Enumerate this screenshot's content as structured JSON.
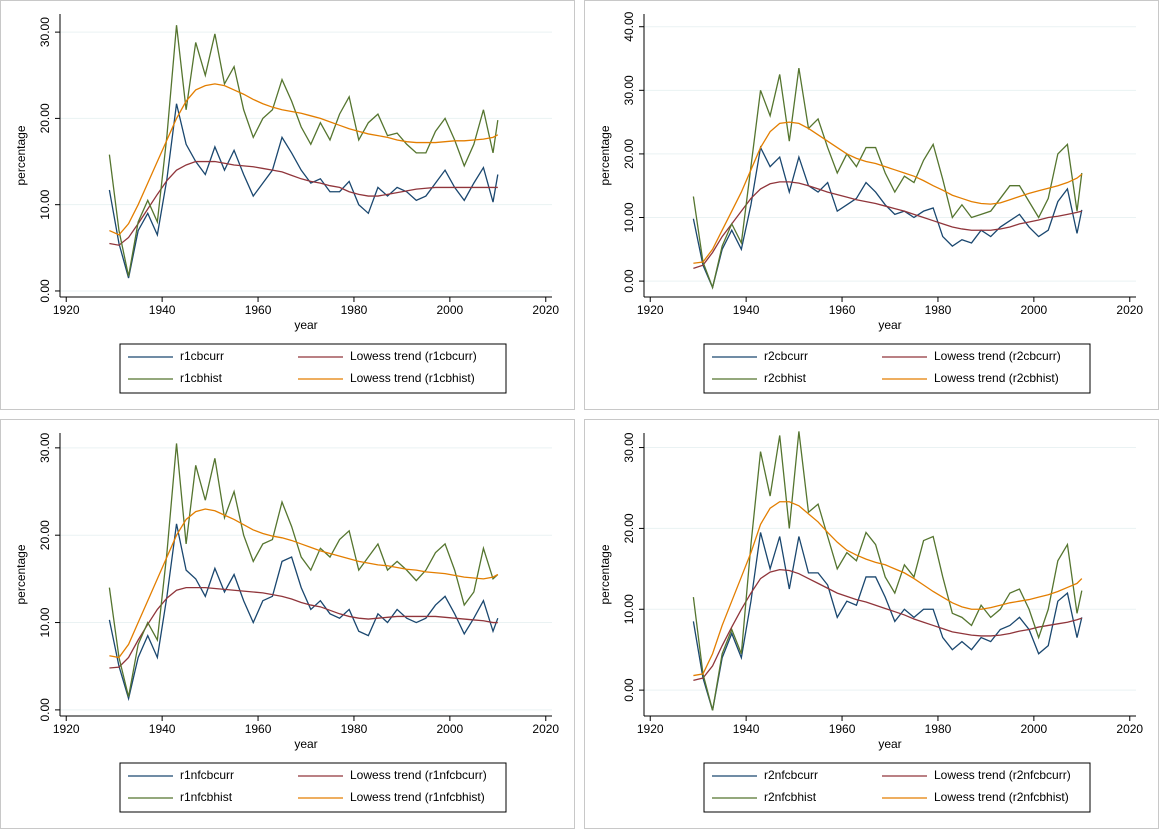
{
  "chart_data": [
    {
      "type": "line",
      "xlabel": "year",
      "ylabel": "percentage",
      "x": [
        1929,
        1931,
        1933,
        1935,
        1937,
        1939,
        1941,
        1943,
        1945,
        1947,
        1949,
        1951,
        1953,
        1955,
        1957,
        1959,
        1961,
        1963,
        1965,
        1967,
        1969,
        1971,
        1973,
        1975,
        1977,
        1979,
        1981,
        1983,
        1985,
        1987,
        1989,
        1991,
        1993,
        1995,
        1997,
        1999,
        2001,
        2003,
        2005,
        2007,
        2009,
        2010
      ],
      "xlim": [
        1918.7,
        2021.3
      ],
      "xticks": [
        1920,
        1940,
        1960,
        1980,
        2000,
        2020
      ],
      "ylim": [
        -0.7,
        32.1
      ],
      "yticks": [
        {
          "value": 0,
          "label": "0.00"
        },
        {
          "value": 10,
          "label": "10.00"
        },
        {
          "value": 20,
          "label": "20.00"
        },
        {
          "value": 30,
          "label": "30.00"
        }
      ],
      "grid": true,
      "series": [
        {
          "name": "r1cbcurr",
          "color": "#1a476f",
          "values": [
            11.7,
            5.5,
            1.5,
            7,
            9,
            6.5,
            13,
            21.7,
            17,
            15,
            13.5,
            16.7,
            14,
            16.3,
            13.5,
            11,
            12.5,
            14,
            17.8,
            16,
            14,
            12.5,
            13,
            11.5,
            11.5,
            12.7,
            10,
            9,
            12,
            11,
            12,
            11.5,
            10.5,
            11,
            12.5,
            14,
            12,
            10.5,
            12.5,
            14.3,
            10.3,
            13.5
          ]
        },
        {
          "name": "Lowess trend (r1cbcurr)",
          "color": "#90353b",
          "values": [
            5.5,
            5.3,
            6.2,
            7.8,
            9.5,
            11.2,
            12.8,
            14,
            14.6,
            15,
            15,
            15,
            14.8,
            14.6,
            14.5,
            14.4,
            14.2,
            14,
            13.8,
            13.4,
            13,
            12.7,
            12.5,
            12.2,
            12,
            11.5,
            11.2,
            11,
            11,
            11.2,
            11.4,
            11.6,
            11.8,
            11.9,
            12,
            12,
            12,
            12,
            12,
            12,
            12,
            12
          ]
        },
        {
          "name": "r1cbhist",
          "color": "#55752f",
          "values": [
            15.8,
            7,
            1.7,
            8,
            10.5,
            8,
            18,
            30.8,
            21,
            28.8,
            25,
            29.8,
            24,
            26,
            21,
            17.8,
            20,
            21,
            24.5,
            22,
            19,
            17,
            19.5,
            17.5,
            20.5,
            22.5,
            17.5,
            19.5,
            20.5,
            18,
            18.3,
            17,
            16,
            16,
            18.5,
            20,
            17.5,
            14.5,
            17,
            21,
            16,
            19.8
          ]
        },
        {
          "name": "Lowess trend (r1cbhist)",
          "color": "#e37e00",
          "values": [
            7,
            6.5,
            7.8,
            10,
            12.5,
            15,
            17.5,
            20,
            22,
            23.3,
            23.8,
            24,
            23.8,
            23.3,
            22.8,
            22.2,
            21.7,
            21.3,
            21,
            20.8,
            20.6,
            20.3,
            20,
            19.6,
            19.2,
            18.8,
            18.5,
            18.2,
            18,
            17.8,
            17.5,
            17.3,
            17.2,
            17.2,
            17.2,
            17.3,
            17.4,
            17.4,
            17.5,
            17.6,
            17.8,
            18.1
          ]
        }
      ]
    },
    {
      "type": "line",
      "xlabel": "year",
      "ylabel": "percentage",
      "x": [
        1929,
        1931,
        1933,
        1935,
        1937,
        1939,
        1941,
        1943,
        1945,
        1947,
        1949,
        1951,
        1953,
        1955,
        1957,
        1959,
        1961,
        1963,
        1965,
        1967,
        1969,
        1971,
        1973,
        1975,
        1977,
        1979,
        1981,
        1983,
        1985,
        1987,
        1989,
        1991,
        1993,
        1995,
        1997,
        1999,
        2001,
        2003,
        2005,
        2007,
        2009,
        2010
      ],
      "xlim": [
        1918.7,
        2021.3
      ],
      "xticks": [
        1920,
        1940,
        1960,
        1980,
        2000,
        2020
      ],
      "ylim": [
        -2.5,
        42
      ],
      "yticks": [
        {
          "value": 0,
          "label": "0.00"
        },
        {
          "value": 10,
          "label": "10.00"
        },
        {
          "value": 20,
          "label": "20.00"
        },
        {
          "value": 30,
          "label": "30.00"
        },
        {
          "value": 40,
          "label": "40.00"
        }
      ],
      "grid": true,
      "series": [
        {
          "name": "r2cbcurr",
          "color": "#1a476f",
          "values": [
            9.8,
            2.5,
            -1,
            5,
            8,
            5,
            12,
            21,
            18,
            19.5,
            14,
            19.5,
            15,
            14,
            15.5,
            11,
            12,
            13,
            15.5,
            14,
            12,
            10.5,
            11,
            10,
            11,
            11.5,
            7,
            5.5,
            6.5,
            6,
            8,
            7,
            8.5,
            9.5,
            10.5,
            8.5,
            7,
            8,
            12.5,
            14.5,
            7.5,
            11.2
          ]
        },
        {
          "name": "Lowess trend (r2cbcurr)",
          "color": "#90353b",
          "values": [
            2,
            2.5,
            4.5,
            7,
            9,
            11,
            13,
            14.5,
            15.3,
            15.6,
            15.6,
            15.4,
            15,
            14.5,
            14,
            13.6,
            13.2,
            12.8,
            12.5,
            12.2,
            11.8,
            11.4,
            11,
            10.5,
            10,
            9.5,
            9,
            8.5,
            8.2,
            8,
            8,
            8,
            8.2,
            8.5,
            9,
            9.3,
            9.6,
            10,
            10.2,
            10.5,
            10.8,
            11
          ]
        },
        {
          "name": "r2cbhist",
          "color": "#55752f",
          "values": [
            13.3,
            3,
            -1,
            5.5,
            9,
            6,
            18,
            30,
            26,
            32.5,
            22,
            33.5,
            24,
            25.5,
            21,
            17,
            20,
            18,
            21,
            21,
            17,
            14,
            16.5,
            15.5,
            19,
            21.5,
            16,
            10,
            12,
            10,
            10.5,
            11,
            13,
            15,
            15,
            12.5,
            10,
            13,
            20,
            21.5,
            11,
            17
          ]
        },
        {
          "name": "Lowess trend (r2cbhist)",
          "color": "#e37e00",
          "values": [
            2.8,
            3,
            5,
            8,
            11,
            14,
            17.5,
            21,
            23.5,
            24.8,
            25,
            24.8,
            24,
            23,
            22,
            21,
            20,
            19.3,
            18.8,
            18.5,
            18,
            17.5,
            17,
            16.5,
            15.8,
            15,
            14.3,
            13.5,
            13,
            12.5,
            12.2,
            12.1,
            12.3,
            12.8,
            13.3,
            13.8,
            14.2,
            14.6,
            15,
            15.5,
            16.2,
            16.8
          ]
        }
      ]
    },
    {
      "type": "line",
      "xlabel": "year",
      "ylabel": "percentage",
      "x": [
        1929,
        1931,
        1933,
        1935,
        1937,
        1939,
        1941,
        1943,
        1945,
        1947,
        1949,
        1951,
        1953,
        1955,
        1957,
        1959,
        1961,
        1963,
        1965,
        1967,
        1969,
        1971,
        1973,
        1975,
        1977,
        1979,
        1981,
        1983,
        1985,
        1987,
        1989,
        1991,
        1993,
        1995,
        1997,
        1999,
        2001,
        2003,
        2005,
        2007,
        2009,
        2010
      ],
      "xlim": [
        1918.7,
        2021.3
      ],
      "xticks": [
        1920,
        1940,
        1960,
        1980,
        2000,
        2020
      ],
      "ylim": [
        -0.7,
        31.7
      ],
      "yticks": [
        {
          "value": 0,
          "label": "0.00"
        },
        {
          "value": 10,
          "label": "10.00"
        },
        {
          "value": 20,
          "label": "20.00"
        },
        {
          "value": 30,
          "label": "30.00"
        }
      ],
      "grid": true,
      "series": [
        {
          "name": "r1nfcbcurr",
          "color": "#1a476f",
          "values": [
            10.3,
            5,
            1.3,
            6,
            8.5,
            6,
            13,
            21.3,
            16,
            15,
            13,
            16.2,
            13.5,
            15.5,
            12.5,
            10,
            12.5,
            13,
            17,
            17.5,
            14,
            11.5,
            12.5,
            11,
            10.5,
            11.5,
            9,
            8.5,
            11,
            10,
            11.5,
            10.5,
            10,
            10.5,
            12,
            13,
            11,
            8.7,
            10.5,
            12.5,
            9,
            10.5
          ]
        },
        {
          "name": "Lowess trend (r1nfcbcurr)",
          "color": "#90353b",
          "values": [
            4.8,
            4.9,
            6,
            8,
            9.8,
            11.5,
            12.8,
            13.7,
            14,
            14,
            14,
            13.9,
            13.8,
            13.7,
            13.6,
            13.5,
            13.4,
            13.2,
            13,
            12.7,
            12.3,
            12,
            11.8,
            11.4,
            11,
            10.7,
            10.5,
            10.4,
            10.5,
            10.6,
            10.7,
            10.7,
            10.7,
            10.7,
            10.7,
            10.6,
            10.5,
            10.4,
            10.3,
            10.2,
            10,
            10
          ]
        },
        {
          "name": "r1nfcbhist",
          "color": "#55752f",
          "values": [
            14,
            6,
            1.5,
            7.5,
            10,
            8,
            18,
            30.5,
            19,
            28,
            24,
            28.8,
            22,
            25,
            20,
            17,
            19,
            19.5,
            23.8,
            21,
            17.5,
            16,
            18.5,
            17.5,
            19.5,
            20.5,
            16,
            17.5,
            19,
            16,
            17,
            16,
            14.8,
            16,
            18,
            19,
            16,
            12,
            13.5,
            18.5,
            15,
            15.5
          ]
        },
        {
          "name": "Lowess trend (r1nfcbhist)",
          "color": "#e37e00",
          "values": [
            6.2,
            6,
            7.5,
            10,
            12.5,
            15,
            17.5,
            20,
            21.8,
            22.7,
            23,
            22.8,
            22.3,
            21.8,
            21.2,
            20.6,
            20.2,
            19.9,
            19.7,
            19.4,
            19,
            18.6,
            18.2,
            17.9,
            17.6,
            17.3,
            17,
            16.8,
            16.6,
            16.5,
            16.3,
            16.1,
            16,
            15.8,
            15.7,
            15.6,
            15.4,
            15.2,
            15.1,
            15,
            15.2,
            15.5
          ]
        }
      ]
    },
    {
      "type": "line",
      "xlabel": "year",
      "ylabel": "percentage",
      "x": [
        1929,
        1931,
        1933,
        1935,
        1937,
        1939,
        1941,
        1943,
        1945,
        1947,
        1949,
        1951,
        1953,
        1955,
        1957,
        1959,
        1961,
        1963,
        1965,
        1967,
        1969,
        1971,
        1973,
        1975,
        1977,
        1979,
        1981,
        1983,
        1985,
        1987,
        1989,
        1991,
        1993,
        1995,
        1997,
        1999,
        2001,
        2003,
        2005,
        2007,
        2009,
        2010
      ],
      "xlim": [
        1918.7,
        2021.3
      ],
      "xticks": [
        1920,
        1940,
        1960,
        1980,
        2000,
        2020
      ],
      "ylim": [
        -3.2,
        31.8
      ],
      "yticks": [
        {
          "value": 0,
          "label": "0.00"
        },
        {
          "value": 10,
          "label": "10.00"
        },
        {
          "value": 20,
          "label": "20.00"
        },
        {
          "value": 30,
          "label": "30.00"
        }
      ],
      "grid": true,
      "series": [
        {
          "name": "r2nfcbcurr",
          "color": "#1a476f",
          "values": [
            8.5,
            1.5,
            -2.5,
            4,
            7,
            4,
            11,
            19.5,
            15,
            19,
            12.5,
            19,
            14.5,
            14.5,
            13,
            9,
            11,
            10.5,
            14,
            14,
            11.5,
            8.5,
            10,
            9,
            10,
            10,
            6.5,
            5,
            6,
            5,
            6.5,
            6,
            7.5,
            8,
            9,
            7.5,
            4.5,
            5.5,
            11,
            12,
            6.5,
            9
          ]
        },
        {
          "name": "Lowess trend (r2nfcbcurr)",
          "color": "#90353b",
          "values": [
            1.2,
            1.5,
            3,
            5.5,
            7.8,
            10,
            12,
            13.8,
            14.6,
            14.9,
            14.8,
            14.4,
            13.8,
            13.2,
            12.6,
            12,
            11.6,
            11.2,
            10.9,
            10.5,
            10.1,
            9.7,
            9.3,
            8.8,
            8.4,
            8,
            7.6,
            7.2,
            7,
            6.8,
            6.7,
            6.7,
            6.8,
            7,
            7.3,
            7.5,
            7.8,
            8,
            8.2,
            8.4,
            8.7,
            8.9
          ]
        },
        {
          "name": "r2nfcbhist",
          "color": "#55752f",
          "values": [
            11.5,
            2,
            -2.5,
            4.5,
            7.5,
            4.5,
            18,
            29.5,
            24,
            31.5,
            20,
            32,
            22,
            23,
            19,
            15,
            17,
            16,
            19.5,
            18,
            14,
            12,
            15.5,
            14,
            18.5,
            19,
            14,
            9.5,
            9,
            8,
            10.5,
            9,
            10,
            12,
            12.5,
            10,
            6.5,
            10,
            16,
            18,
            9.5,
            12.3
          ]
        },
        {
          "name": "Lowess trend (r2nfcbhist)",
          "color": "#e37e00",
          "values": [
            1.8,
            2,
            4.5,
            8,
            11,
            14,
            17,
            20.5,
            22.5,
            23.3,
            23.3,
            22.8,
            21.8,
            20.8,
            19.5,
            18.3,
            17.3,
            16.7,
            16.2,
            15.8,
            15.5,
            15,
            14.5,
            13.8,
            13,
            12.2,
            11.5,
            10.8,
            10.3,
            10,
            10,
            10.2,
            10.5,
            10.8,
            11,
            11.2,
            11.5,
            11.8,
            12.2,
            12.7,
            13.2,
            13.8
          ]
        }
      ]
    }
  ]
}
